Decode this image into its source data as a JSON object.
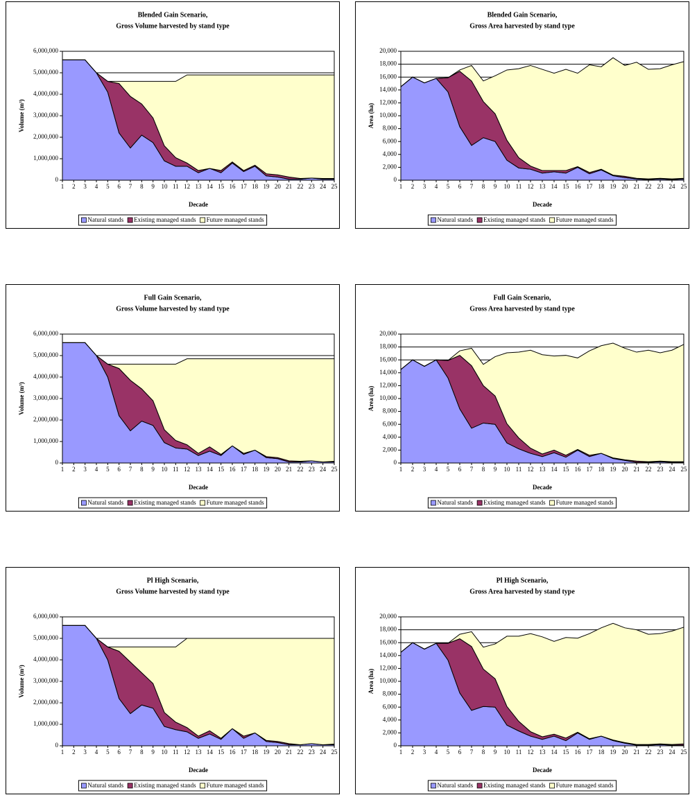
{
  "chart_data": [
    {
      "type": "area",
      "stacked": true,
      "title": "Blended Gain Scenario,",
      "subtitle": "Gross Volume harvested by stand type",
      "xlabel": "Decade",
      "ylabel": "Volume (m³)",
      "categories": [
        1,
        2,
        3,
        4,
        5,
        6,
        7,
        8,
        9,
        10,
        11,
        12,
        13,
        14,
        15,
        16,
        17,
        18,
        19,
        20,
        21,
        22,
        23,
        24,
        25
      ],
      "ylim": [
        0,
        6000000
      ],
      "yticks": [
        0,
        {
          "value": 1000000,
          "label": "1,000,000"
        },
        {
          "value": 2000000,
          "label": "2,000,000"
        },
        {
          "value": 3000000,
          "label": "3,000,000"
        },
        {
          "value": 4000000,
          "label": "4,000,000"
        },
        {
          "value": 5000000,
          "label": "5,000,000"
        },
        {
          "value": 6000000,
          "label": "6,000,000"
        }
      ],
      "grid": true,
      "legend": "bottom",
      "series": [
        {
          "name": "Natural stands",
          "color": "#9999ff",
          "values": [
            5600000,
            5600000,
            5600000,
            5000000,
            4100000,
            2200000,
            1500000,
            2100000,
            1750000,
            900000,
            650000,
            650000,
            350000,
            550000,
            350000,
            800000,
            400000,
            650000,
            200000,
            150000,
            50000,
            50000,
            100000,
            50000,
            50000
          ]
        },
        {
          "name": "Existing managed stands",
          "color": "#993366",
          "values": [
            0,
            0,
            0,
            0,
            500000,
            2300000,
            2400000,
            1450000,
            1150000,
            700000,
            400000,
            150000,
            100000,
            0,
            100000,
            50000,
            50000,
            50000,
            100000,
            100000,
            100000,
            30000,
            0,
            30000,
            30000
          ]
        },
        {
          "name": "Future managed stands",
          "color": "#ffffcc",
          "values": [
            0,
            0,
            0,
            0,
            0,
            100000,
            700000,
            1050000,
            1700000,
            3000000,
            3550000,
            4100000,
            4450000,
            4350000,
            4450000,
            4050000,
            4450000,
            4200000,
            4600000,
            4650000,
            4750000,
            4820000,
            4800000,
            4820000,
            4820000
          ]
        }
      ]
    },
    {
      "type": "area",
      "stacked": true,
      "title": "Blended Gain Scenario,",
      "subtitle": "Gross Area harvested by stand type",
      "xlabel": "Decade",
      "ylabel": "Area (ha)",
      "categories": [
        1,
        2,
        3,
        4,
        5,
        6,
        7,
        8,
        9,
        10,
        11,
        12,
        13,
        14,
        15,
        16,
        17,
        18,
        19,
        20,
        21,
        22,
        23,
        24,
        25
      ],
      "ylim": [
        0,
        20000
      ],
      "yticks": [
        0,
        {
          "value": 2000,
          "label": "2,000"
        },
        {
          "value": 4000,
          "label": "4,000"
        },
        {
          "value": 6000,
          "label": "6,000"
        },
        {
          "value": 8000,
          "label": "8,000"
        },
        {
          "value": 10000,
          "label": "10,000"
        },
        {
          "value": 12000,
          "label": "12,000"
        },
        {
          "value": 14000,
          "label": "14,000"
        },
        {
          "value": 16000,
          "label": "16,000"
        },
        {
          "value": 18000,
          "label": "18,000"
        },
        {
          "value": 20000,
          "label": "20,000"
        }
      ],
      "grid": true,
      "legend": "bottom",
      "series": [
        {
          "name": "Natural stands",
          "color": "#9999ff",
          "values": [
            14500,
            16000,
            15100,
            15800,
            13700,
            8300,
            5400,
            6600,
            6000,
            3100,
            1900,
            1700,
            1100,
            1300,
            1100,
            2000,
            1000,
            1600,
            700,
            400,
            200,
            100,
            200,
            100,
            200
          ]
        },
        {
          "name": "Existing managed stands",
          "color": "#993366",
          "values": [
            0,
            0,
            0,
            0,
            2200,
            8600,
            10000,
            5600,
            4300,
            3100,
            1600,
            500,
            400,
            200,
            400,
            100,
            200,
            100,
            100,
            200,
            100,
            100,
            100,
            100,
            100
          ]
        },
        {
          "name": "Future managed stands",
          "color": "#ffffcc",
          "values": [
            0,
            0,
            0,
            0,
            0,
            200,
            2400,
            3200,
            5900,
            10900,
            13800,
            15600,
            15700,
            15100,
            15700,
            14500,
            16700,
            15900,
            18200,
            17200,
            18000,
            17000,
            17000,
            17700,
            18100
          ]
        }
      ]
    },
    {
      "type": "area",
      "stacked": true,
      "title": "Full Gain Scenario,",
      "subtitle": "Gross Volume harvested by stand type",
      "xlabel": "Decade",
      "ylabel": "Volume (m³)",
      "categories": [
        1,
        2,
        3,
        4,
        5,
        6,
        7,
        8,
        9,
        10,
        11,
        12,
        13,
        14,
        15,
        16,
        17,
        18,
        19,
        20,
        21,
        22,
        23,
        24,
        25
      ],
      "ylim": [
        0,
        6000000
      ],
      "yticks": [
        0,
        {
          "value": 1000000,
          "label": "1,000,000"
        },
        {
          "value": 2000000,
          "label": "2,000,000"
        },
        {
          "value": 3000000,
          "label": "3,000,000"
        },
        {
          "value": 4000000,
          "label": "4,000,000"
        },
        {
          "value": 5000000,
          "label": "5,000,000"
        },
        {
          "value": 6000000,
          "label": "6,000,000"
        }
      ],
      "grid": true,
      "legend": "bottom",
      "series": [
        {
          "name": "Natural stands",
          "color": "#9999ff",
          "values": [
            5600000,
            5600000,
            5600000,
            5000000,
            4000000,
            2200000,
            1500000,
            1950000,
            1750000,
            950000,
            700000,
            650000,
            350000,
            550000,
            350000,
            800000,
            400000,
            600000,
            250000,
            200000,
            50000,
            50000,
            100000,
            50000,
            50000
          ]
        },
        {
          "name": "Existing managed stands",
          "color": "#993366",
          "values": [
            0,
            0,
            0,
            0,
            600000,
            2200000,
            2350000,
            1500000,
            1150000,
            600000,
            350000,
            200000,
            100000,
            200000,
            50000,
            0,
            50000,
            0,
            50000,
            50000,
            50000,
            30000,
            0,
            0,
            30000
          ]
        },
        {
          "name": "Future managed stands",
          "color": "#ffffcc",
          "values": [
            0,
            0,
            0,
            0,
            0,
            200000,
            750000,
            1150000,
            1700000,
            3050000,
            3550000,
            4000000,
            4400000,
            4100000,
            4450000,
            4050000,
            4400000,
            4250000,
            4550000,
            4600000,
            4750000,
            4770000,
            4750000,
            4800000,
            4770000
          ]
        }
      ]
    },
    {
      "type": "area",
      "stacked": true,
      "title": "Full Gain Scenario,",
      "subtitle": "Gross Area harvested by stand type",
      "xlabel": "Decade",
      "ylabel": "Area (ha)",
      "categories": [
        1,
        2,
        3,
        4,
        5,
        6,
        7,
        8,
        9,
        10,
        11,
        12,
        13,
        14,
        15,
        16,
        17,
        18,
        19,
        20,
        21,
        22,
        23,
        24,
        25
      ],
      "ylim": [
        0,
        20000
      ],
      "yticks": [
        0,
        {
          "value": 2000,
          "label": "2,000"
        },
        {
          "value": 4000,
          "label": "4,000"
        },
        {
          "value": 6000,
          "label": "6,000"
        },
        {
          "value": 8000,
          "label": "8,000"
        },
        {
          "value": 10000,
          "label": "10,000"
        },
        {
          "value": 12000,
          "label": "12,000"
        },
        {
          "value": 14000,
          "label": "14,000"
        },
        {
          "value": 16000,
          "label": "16,000"
        },
        {
          "value": 18000,
          "label": "18,000"
        },
        {
          "value": 20000,
          "label": "20,000"
        }
      ],
      "grid": true,
      "legend": "bottom",
      "series": [
        {
          "name": "Natural stands",
          "color": "#9999ff",
          "values": [
            14500,
            16000,
            15000,
            16000,
            13200,
            8400,
            5400,
            6200,
            6000,
            3100,
            2200,
            1500,
            1000,
            1600,
            900,
            2000,
            1000,
            1500,
            700,
            400,
            100,
            100,
            200,
            100,
            100
          ]
        },
        {
          "name": "Existing managed stands",
          "color": "#993366",
          "values": [
            0,
            0,
            0,
            0,
            2700,
            8300,
            9700,
            5800,
            4400,
            3000,
            1700,
            800,
            400,
            400,
            300,
            100,
            200,
            0,
            100,
            100,
            200,
            100,
            100,
            100,
            100
          ]
        },
        {
          "name": "Future managed stands",
          "color": "#ffffcc",
          "values": [
            0,
            0,
            0,
            0,
            0,
            700,
            2700,
            3300,
            6100,
            11000,
            13300,
            15200,
            15400,
            14600,
            15500,
            14200,
            16200,
            16700,
            17800,
            17300,
            16900,
            17300,
            16800,
            17300,
            18200
          ]
        }
      ]
    },
    {
      "type": "area",
      "stacked": true,
      "title": "Pl High Scenario,",
      "subtitle": "Gross Volume harvested by stand type",
      "xlabel": "Decade",
      "ylabel": "Volume (m³)",
      "categories": [
        1,
        2,
        3,
        4,
        5,
        6,
        7,
        8,
        9,
        10,
        11,
        12,
        13,
        14,
        15,
        16,
        17,
        18,
        19,
        20,
        21,
        22,
        23,
        24,
        25
      ],
      "ylim": [
        0,
        6000000
      ],
      "yticks": [
        0,
        {
          "value": 1000000,
          "label": "1,000,000"
        },
        {
          "value": 2000000,
          "label": "2,000,000"
        },
        {
          "value": 3000000,
          "label": "3,000,000"
        },
        {
          "value": 4000000,
          "label": "4,000,000"
        },
        {
          "value": 5000000,
          "label": "5,000,000"
        },
        {
          "value": 6000000,
          "label": "6,000,000"
        }
      ],
      "grid": true,
      "legend": "bottom",
      "series": [
        {
          "name": "Natural stands",
          "color": "#9999ff",
          "values": [
            5600000,
            5600000,
            5600000,
            5000000,
            4000000,
            2200000,
            1500000,
            1900000,
            1750000,
            900000,
            750000,
            650000,
            350000,
            550000,
            300000,
            800000,
            350000,
            600000,
            200000,
            150000,
            50000,
            50000,
            100000,
            50000,
            50000
          ]
        },
        {
          "name": "Existing managed stands",
          "color": "#993366",
          "values": [
            0,
            0,
            0,
            0,
            600000,
            2200000,
            2400000,
            1500000,
            1150000,
            650000,
            350000,
            200000,
            100000,
            150000,
            50000,
            0,
            100000,
            0,
            50000,
            50000,
            50000,
            0,
            0,
            0,
            30000
          ]
        },
        {
          "name": "Future managed stands",
          "color": "#ffffcc",
          "values": [
            0,
            0,
            0,
            0,
            0,
            200000,
            700000,
            1200000,
            1700000,
            3050000,
            3500000,
            4150000,
            4550000,
            4300000,
            4650000,
            4200000,
            4550000,
            4400000,
            4750000,
            4800000,
            4900000,
            4950000,
            4900000,
            4950000,
            4920000
          ]
        }
      ]
    },
    {
      "type": "area",
      "stacked": true,
      "title": "Pl High Scenario,",
      "subtitle": "Gross Area harvested by stand type",
      "xlabel": "Decade",
      "ylabel": "Area (ha)",
      "categories": [
        1,
        2,
        3,
        4,
        5,
        6,
        7,
        8,
        9,
        10,
        11,
        12,
        13,
        14,
        15,
        16,
        17,
        18,
        19,
        20,
        21,
        22,
        23,
        24,
        25
      ],
      "ylim": [
        0,
        20000
      ],
      "yticks": [
        0,
        {
          "value": 2000,
          "label": "2,000"
        },
        {
          "value": 4000,
          "label": "4,000"
        },
        {
          "value": 6000,
          "label": "6,000"
        },
        {
          "value": 8000,
          "label": "8,000"
        },
        {
          "value": 10000,
          "label": "10,000"
        },
        {
          "value": 12000,
          "label": "12,000"
        },
        {
          "value": 14000,
          "label": "14,000"
        },
        {
          "value": 16000,
          "label": "16,000"
        },
        {
          "value": 18000,
          "label": "18,000"
        },
        {
          "value": 20000,
          "label": "20,000"
        }
      ],
      "grid": true,
      "legend": "bottom",
      "series": [
        {
          "name": "Natural stands",
          "color": "#9999ff",
          "values": [
            14500,
            16000,
            15000,
            15900,
            13300,
            8200,
            5500,
            6100,
            6000,
            3200,
            2300,
            1500,
            1000,
            1500,
            800,
            2000,
            1000,
            1500,
            800,
            400,
            100,
            100,
            200,
            100,
            100
          ]
        },
        {
          "name": "Existing managed stands",
          "color": "#993366",
          "values": [
            0,
            0,
            0,
            0,
            2600,
            8400,
            9900,
            5800,
            4400,
            2900,
            1500,
            700,
            400,
            300,
            400,
            100,
            100,
            0,
            100,
            100,
            100,
            100,
            100,
            100,
            200
          ]
        },
        {
          "name": "Future managed stands",
          "color": "#ffffcc",
          "values": [
            0,
            0,
            0,
            0,
            0,
            700,
            2300,
            3400,
            5400,
            10900,
            13200,
            15200,
            15500,
            14400,
            15600,
            14600,
            16300,
            16800,
            18100,
            17800,
            17800,
            17100,
            17100,
            17600,
            18100
          ]
        }
      ]
    }
  ]
}
